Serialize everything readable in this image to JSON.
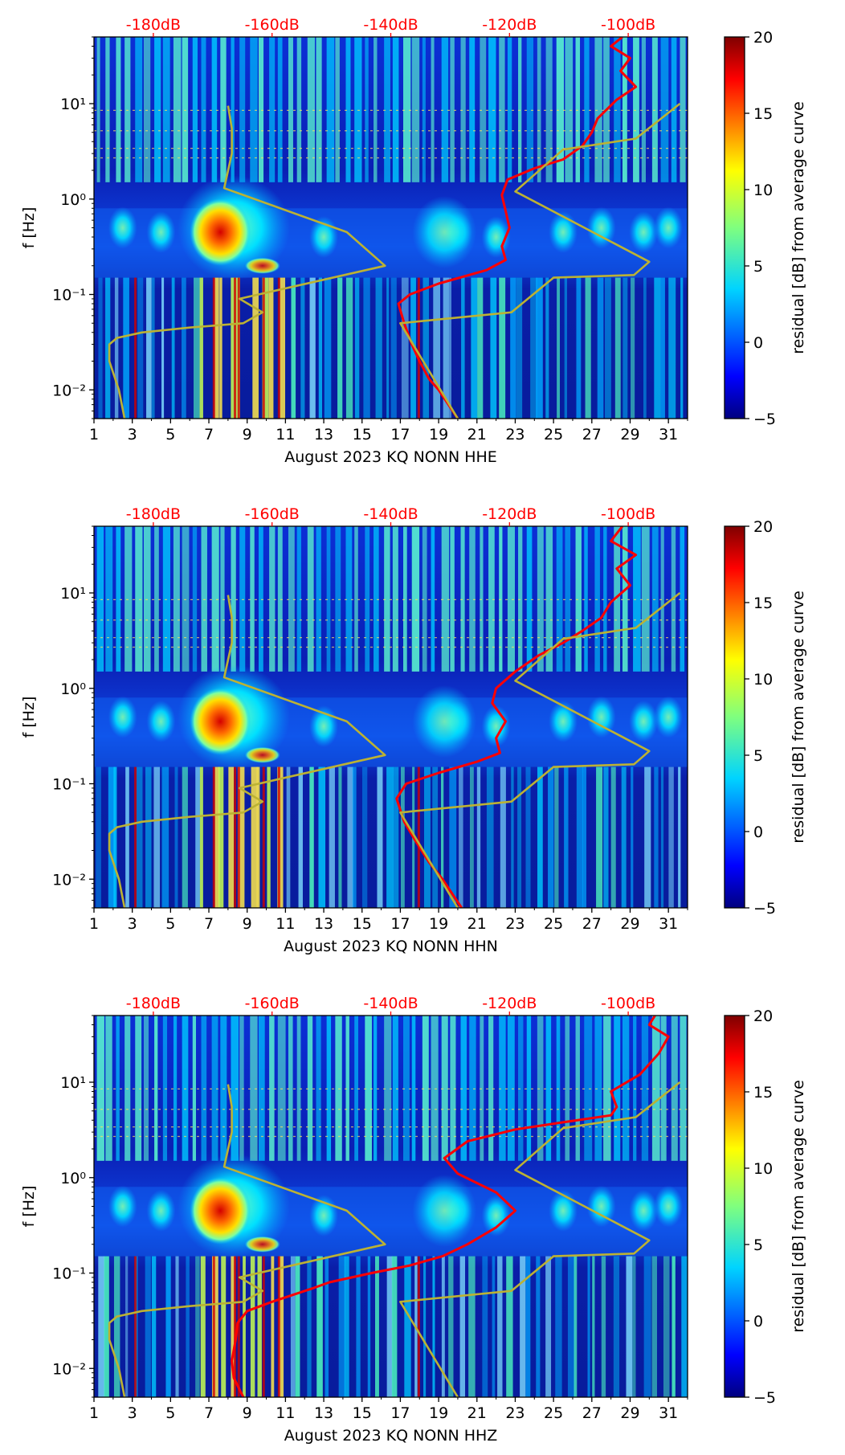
{
  "figure": {
    "colorbar_label": "residual [dB] from average curve",
    "colorbar_ticks": [
      20,
      15,
      10,
      5,
      0,
      -5
    ],
    "colorbar_ticks_text": [
      "20",
      "15",
      "10",
      "5",
      "0",
      "−5"
    ],
    "colormap": [
      "#00007f",
      "#0000ff",
      "#007fff",
      "#00ffff",
      "#7fff7f",
      "#ffff00",
      "#ff7f00",
      "#ff0000",
      "#7f0000"
    ],
    "top_db_labels": [
      "-180dB",
      "-160dB",
      "-140dB",
      "-120dB",
      "-100dB"
    ],
    "ylabel": "f [Hz]",
    "y_tick_labels": [
      "10¹",
      "10⁰",
      "10⁻¹",
      "10⁻²"
    ],
    "x_tick_labels": [
      "1",
      "3",
      "5",
      "7",
      "9",
      "11",
      "13",
      "15",
      "17",
      "19",
      "21",
      "23",
      "25",
      "27",
      "29",
      "31"
    ]
  },
  "chart_data": [
    {
      "type": "heatmap",
      "xlabel": "August 2023 KQ NONN  HHE",
      "ylabel": "f [Hz]",
      "xlim": [
        1,
        32
      ],
      "ylim": [
        0.005,
        50
      ],
      "yscale": "log",
      "clim": [
        -5,
        20
      ],
      "x_ticks": [
        1,
        3,
        5,
        7,
        9,
        11,
        13,
        15,
        17,
        19,
        21,
        23,
        25,
        27,
        29,
        31
      ],
      "y_ticks": [
        10,
        1,
        0.1,
        0.01
      ],
      "top_db_ticks": [
        -180,
        -160,
        -140,
        -120,
        -100
      ],
      "series": [
        {
          "name": "reference noise model",
          "color": "#bcb233",
          "points": [
            [
              2.6,
              0.005
            ],
            [
              2.3,
              0.01
            ],
            [
              1.8,
              0.02
            ],
            [
              1.8,
              0.03
            ],
            [
              2.2,
              0.035
            ],
            [
              3.5,
              0.04
            ],
            [
              6.0,
              0.045
            ],
            [
              8.8,
              0.05
            ],
            [
              9.8,
              0.065
            ],
            [
              8.6,
              0.09
            ],
            [
              16.2,
              0.2
            ],
            [
              14.2,
              0.45
            ],
            [
              7.8,
              1.3
            ],
            [
              8.2,
              3.0
            ],
            [
              8.2,
              5.5
            ],
            [
              8.0,
              9.5
            ]
          ]
        },
        {
          "name": "station PSD",
          "color": "#ff0000",
          "points": [
            [
              20.0,
              0.005
            ],
            [
              19.0,
              0.01
            ],
            [
              18.5,
              0.013
            ],
            [
              18.0,
              0.02
            ],
            [
              17.6,
              0.03
            ],
            [
              17.2,
              0.05
            ],
            [
              16.9,
              0.08
            ],
            [
              17.5,
              0.1
            ],
            [
              19.0,
              0.13
            ],
            [
              21.5,
              0.18
            ],
            [
              22.5,
              0.23
            ],
            [
              22.3,
              0.32
            ],
            [
              22.7,
              0.5
            ],
            [
              22.5,
              0.75
            ],
            [
              22.3,
              1.1
            ],
            [
              22.6,
              1.6
            ],
            [
              24.0,
              2.1
            ],
            [
              25.5,
              2.6
            ],
            [
              26.5,
              3.6
            ],
            [
              27.0,
              5.0
            ],
            [
              27.3,
              7.0
            ],
            [
              28.3,
              11.0
            ],
            [
              29.3,
              15.0
            ],
            [
              28.5,
              22.0
            ],
            [
              29.0,
              30.0
            ],
            [
              28.0,
              40.0
            ],
            [
              28.6,
              50.0
            ]
          ]
        },
        {
          "name": "reference model 2",
          "color": "#bcb233",
          "points": [
            [
              20.0,
              0.005
            ],
            [
              17.0,
              0.05
            ],
            [
              22.8,
              0.065
            ],
            [
              25.0,
              0.15
            ],
            [
              29.2,
              0.16
            ],
            [
              30.0,
              0.22
            ],
            [
              23.0,
              1.2
            ],
            [
              25.5,
              3.3
            ],
            [
              29.3,
              4.3
            ],
            [
              31.6,
              10.0
            ]
          ]
        }
      ]
    },
    {
      "type": "heatmap",
      "xlabel": "August 2023 KQ NONN  HHN",
      "ylabel": "f [Hz]",
      "xlim": [
        1,
        32
      ],
      "ylim": [
        0.005,
        50
      ],
      "yscale": "log",
      "clim": [
        -5,
        20
      ],
      "x_ticks": [
        1,
        3,
        5,
        7,
        9,
        11,
        13,
        15,
        17,
        19,
        21,
        23,
        25,
        27,
        29,
        31
      ],
      "y_ticks": [
        10,
        1,
        0.1,
        0.01
      ],
      "top_db_ticks": [
        -180,
        -160,
        -140,
        -120,
        -100
      ],
      "series": [
        {
          "name": "reference noise model",
          "color": "#bcb233",
          "points": [
            [
              2.6,
              0.005
            ],
            [
              2.3,
              0.01
            ],
            [
              1.8,
              0.02
            ],
            [
              1.8,
              0.03
            ],
            [
              2.2,
              0.035
            ],
            [
              3.5,
              0.04
            ],
            [
              6.0,
              0.045
            ],
            [
              8.8,
              0.05
            ],
            [
              9.8,
              0.065
            ],
            [
              8.6,
              0.09
            ],
            [
              16.2,
              0.2
            ],
            [
              14.2,
              0.45
            ],
            [
              7.8,
              1.3
            ],
            [
              8.2,
              3.0
            ],
            [
              8.2,
              5.5
            ],
            [
              8.0,
              9.5
            ]
          ]
        },
        {
          "name": "station PSD",
          "color": "#ff0000",
          "points": [
            [
              20.2,
              0.005
            ],
            [
              19.2,
              0.01
            ],
            [
              18.5,
              0.015
            ],
            [
              17.8,
              0.025
            ],
            [
              17.2,
              0.04
            ],
            [
              16.8,
              0.07
            ],
            [
              17.3,
              0.1
            ],
            [
              19.0,
              0.13
            ],
            [
              21.0,
              0.17
            ],
            [
              22.2,
              0.21
            ],
            [
              22.0,
              0.3
            ],
            [
              22.5,
              0.45
            ],
            [
              21.8,
              0.7
            ],
            [
              22.0,
              1.0
            ],
            [
              23.0,
              1.5
            ],
            [
              24.2,
              2.2
            ],
            [
              25.5,
              3.0
            ],
            [
              26.5,
              4.0
            ],
            [
              27.5,
              5.5
            ],
            [
              28.0,
              8.0
            ],
            [
              29.0,
              12.0
            ],
            [
              28.3,
              18.0
            ],
            [
              29.3,
              25.0
            ],
            [
              28.0,
              35.0
            ],
            [
              28.6,
              50.0
            ]
          ]
        },
        {
          "name": "reference model 2",
          "color": "#bcb233",
          "points": [
            [
              20.0,
              0.005
            ],
            [
              17.0,
              0.05
            ],
            [
              22.8,
              0.065
            ],
            [
              25.0,
              0.15
            ],
            [
              29.2,
              0.16
            ],
            [
              30.0,
              0.22
            ],
            [
              23.0,
              1.2
            ],
            [
              25.5,
              3.3
            ],
            [
              29.3,
              4.3
            ],
            [
              31.6,
              10.0
            ]
          ]
        }
      ]
    },
    {
      "type": "heatmap",
      "xlabel": "August 2023 KQ NONN  HHZ",
      "ylabel": "f [Hz]",
      "xlim": [
        1,
        32
      ],
      "ylim": [
        0.005,
        50
      ],
      "yscale": "log",
      "clim": [
        -5,
        20
      ],
      "x_ticks": [
        1,
        3,
        5,
        7,
        9,
        11,
        13,
        15,
        17,
        19,
        21,
        23,
        25,
        27,
        29,
        31
      ],
      "y_ticks": [
        10,
        1,
        0.1,
        0.01
      ],
      "top_db_ticks": [
        -180,
        -160,
        -140,
        -120,
        -100
      ],
      "series": [
        {
          "name": "reference noise model",
          "color": "#bcb233",
          "points": [
            [
              2.6,
              0.005
            ],
            [
              2.3,
              0.01
            ],
            [
              1.8,
              0.02
            ],
            [
              1.8,
              0.03
            ],
            [
              2.2,
              0.035
            ],
            [
              3.5,
              0.04
            ],
            [
              6.0,
              0.045
            ],
            [
              8.8,
              0.05
            ],
            [
              9.8,
              0.065
            ],
            [
              8.6,
              0.09
            ],
            [
              16.2,
              0.2
            ],
            [
              14.2,
              0.45
            ],
            [
              7.8,
              1.3
            ],
            [
              8.2,
              3.0
            ],
            [
              8.2,
              5.5
            ],
            [
              8.0,
              9.5
            ]
          ]
        },
        {
          "name": "station PSD",
          "color": "#ff0000",
          "points": [
            [
              8.8,
              0.005
            ],
            [
              8.3,
              0.008
            ],
            [
              8.2,
              0.012
            ],
            [
              8.4,
              0.02
            ],
            [
              8.5,
              0.03
            ],
            [
              9.0,
              0.04
            ],
            [
              10.3,
              0.05
            ],
            [
              11.5,
              0.06
            ],
            [
              12.5,
              0.07
            ],
            [
              13.3,
              0.08
            ],
            [
              15.5,
              0.1
            ],
            [
              17.5,
              0.12
            ],
            [
              19.2,
              0.15
            ],
            [
              20.5,
              0.2
            ],
            [
              22.0,
              0.3
            ],
            [
              23.0,
              0.45
            ],
            [
              22.0,
              0.7
            ],
            [
              20.0,
              1.1
            ],
            [
              19.3,
              1.6
            ],
            [
              20.5,
              2.4
            ],
            [
              23.0,
              3.2
            ],
            [
              25.5,
              3.8
            ],
            [
              28.0,
              4.5
            ],
            [
              28.3,
              5.5
            ],
            [
              28.0,
              8.0
            ],
            [
              29.5,
              12.0
            ],
            [
              30.5,
              20.0
            ],
            [
              31.0,
              30.0
            ],
            [
              30.0,
              40.0
            ],
            [
              30.3,
              50.0
            ]
          ]
        },
        {
          "name": "reference model 2",
          "color": "#bcb233",
          "points": [
            [
              20.0,
              0.005
            ],
            [
              17.0,
              0.05
            ],
            [
              22.8,
              0.065
            ],
            [
              25.0,
              0.15
            ],
            [
              29.2,
              0.16
            ],
            [
              30.0,
              0.22
            ],
            [
              23.0,
              1.2
            ],
            [
              25.5,
              3.3
            ],
            [
              29.3,
              4.3
            ],
            [
              31.6,
              10.0
            ]
          ]
        }
      ]
    }
  ]
}
